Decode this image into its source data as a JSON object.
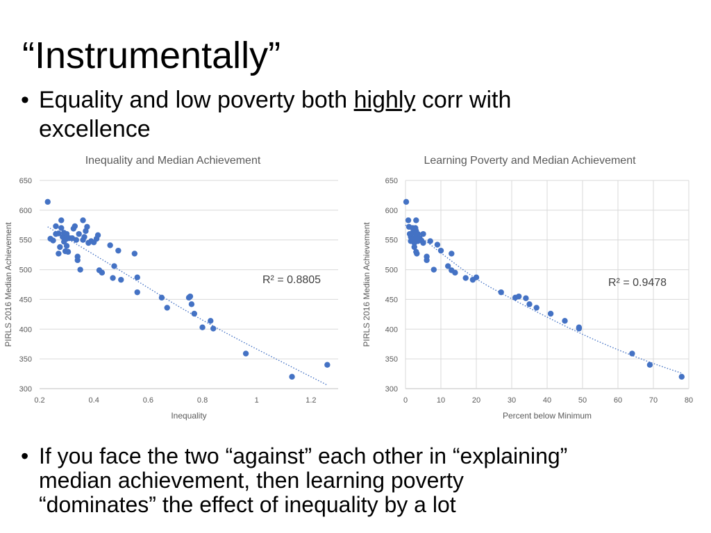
{
  "slide": {
    "title": "“Instrumentally”",
    "bullet1_dot": "•",
    "bullet1_pre": "Equality and low poverty both ",
    "bullet1_emph": "highly",
    "bullet1_post": " corr with",
    "bullet1_line2": "excellence",
    "bullet2_dot": "•",
    "bullet2_lines": [
      "If you face the two “against” each other in “explaining”",
      "median achievement, then learning poverty",
      "“dominates” the effect of inequality by a lot"
    ]
  },
  "colors": {
    "marker": "#4472c4",
    "grid": "#d9d9d9",
    "text": "#595959"
  },
  "chart_data": [
    {
      "type": "scatter",
      "title": "Inequality and Median Achievement",
      "xlabel": "Inequality",
      "ylabel": "PIRLS 2016 Median Achievement",
      "xlim": [
        0.2,
        1.3
      ],
      "ylim": [
        300,
        650
      ],
      "xticks": [
        0.2,
        0.4,
        0.6,
        0.8,
        1.0,
        1.2
      ],
      "xtick_labels": [
        "0.2",
        "0.4",
        "0.6",
        "0.8",
        "1",
        "1.2"
      ],
      "yticks": [
        300,
        350,
        400,
        450,
        500,
        550,
        600,
        650
      ],
      "ytick_labels": [
        "300",
        "350",
        "400",
        "450",
        "500",
        "550",
        "600",
        "650"
      ],
      "grid": "horizontal",
      "annotation": "R² = 0.8805",
      "trendline": {
        "type": "polynomial",
        "points": [
          [
            0.23,
            572
          ],
          [
            0.5,
            498
          ],
          [
            0.8,
            413
          ],
          [
            1.26,
            306
          ]
        ]
      },
      "points": [
        [
          0.23,
          614
        ],
        [
          0.24,
          552
        ],
        [
          0.25,
          549
        ],
        [
          0.26,
          573
        ],
        [
          0.26,
          560
        ],
        [
          0.27,
          527
        ],
        [
          0.27,
          561
        ],
        [
          0.275,
          538
        ],
        [
          0.28,
          583
        ],
        [
          0.28,
          570
        ],
        [
          0.285,
          555
        ],
        [
          0.29,
          547
        ],
        [
          0.29,
          562
        ],
        [
          0.295,
          531
        ],
        [
          0.3,
          540
        ],
        [
          0.3,
          552
        ],
        [
          0.3,
          560
        ],
        [
          0.305,
          530
        ],
        [
          0.31,
          553
        ],
        [
          0.32,
          553
        ],
        [
          0.325,
          569
        ],
        [
          0.33,
          573
        ],
        [
          0.335,
          550
        ],
        [
          0.34,
          522
        ],
        [
          0.34,
          516
        ],
        [
          0.345,
          560
        ],
        [
          0.35,
          500
        ],
        [
          0.36,
          583
        ],
        [
          0.36,
          550
        ],
        [
          0.365,
          555
        ],
        [
          0.37,
          565
        ],
        [
          0.375,
          572
        ],
        [
          0.38,
          545
        ],
        [
          0.39,
          548
        ],
        [
          0.4,
          546
        ],
        [
          0.41,
          552
        ],
        [
          0.415,
          558
        ],
        [
          0.42,
          499
        ],
        [
          0.43,
          495
        ],
        [
          0.46,
          541
        ],
        [
          0.47,
          486
        ],
        [
          0.475,
          506
        ],
        [
          0.49,
          532
        ],
        [
          0.5,
          483
        ],
        [
          0.55,
          527
        ],
        [
          0.56,
          487
        ],
        [
          0.56,
          462
        ],
        [
          0.65,
          453
        ],
        [
          0.67,
          436
        ],
        [
          0.75,
          453
        ],
        [
          0.755,
          455
        ],
        [
          0.76,
          442
        ],
        [
          0.77,
          426
        ],
        [
          0.8,
          403
        ],
        [
          0.83,
          414
        ],
        [
          0.84,
          401
        ],
        [
          0.96,
          359
        ],
        [
          1.13,
          320
        ],
        [
          1.26,
          340
        ]
      ]
    },
    {
      "type": "scatter",
      "title": "Learning Poverty and Median Achievement",
      "xlabel": "Percent below Minimum",
      "ylabel": "PIRLS 2016 Median Achievement",
      "xlim": [
        0,
        80
      ],
      "ylim": [
        300,
        650
      ],
      "xticks": [
        0,
        10,
        20,
        30,
        40,
        50,
        60,
        70,
        80
      ],
      "xtick_labels": [
        "0",
        "10",
        "20",
        "30",
        "40",
        "50",
        "60",
        "70",
        "80"
      ],
      "yticks": [
        300,
        350,
        400,
        450,
        500,
        550,
        600,
        650
      ],
      "ytick_labels": [
        "300",
        "350",
        "400",
        "450",
        "500",
        "550",
        "600",
        "650"
      ],
      "grid": "both",
      "annotation": "R² = 0.9478",
      "trendline": {
        "type": "polynomial",
        "points": [
          [
            0,
            575
          ],
          [
            10,
            528
          ],
          [
            20,
            483
          ],
          [
            30,
            451
          ],
          [
            40,
            420
          ],
          [
            50,
            391
          ],
          [
            60,
            365
          ],
          [
            70,
            342
          ],
          [
            78,
            326
          ]
        ]
      },
      "points": [
        [
          0.2,
          614
        ],
        [
          0.8,
          583
        ],
        [
          1.0,
          572
        ],
        [
          1.2,
          560
        ],
        [
          1.5,
          555
        ],
        [
          1.5,
          548
        ],
        [
          2.0,
          570
        ],
        [
          2.0,
          562
        ],
        [
          2.2,
          552
        ],
        [
          2.5,
          545
        ],
        [
          2.5,
          538
        ],
        [
          2.8,
          570
        ],
        [
          3.0,
          583
        ],
        [
          3.0,
          565
        ],
        [
          3.0,
          556
        ],
        [
          3.0,
          530
        ],
        [
          3.2,
          527
        ],
        [
          3.5,
          560
        ],
        [
          3.5,
          548
        ],
        [
          4.0,
          553
        ],
        [
          4.5,
          549
        ],
        [
          5.0,
          545
        ],
        [
          5.0,
          560
        ],
        [
          6.0,
          522
        ],
        [
          6.0,
          516
        ],
        [
          7.0,
          548
        ],
        [
          8.0,
          500
        ],
        [
          9.0,
          542
        ],
        [
          10.0,
          532
        ],
        [
          12.0,
          506
        ],
        [
          13.0,
          527
        ],
        [
          13.0,
          499
        ],
        [
          14.0,
          495
        ],
        [
          17.0,
          486
        ],
        [
          19.0,
          483
        ],
        [
          20.0,
          487
        ],
        [
          27.0,
          462
        ],
        [
          31.0,
          453
        ],
        [
          32.0,
          455
        ],
        [
          34.0,
          452
        ],
        [
          35.0,
          442
        ],
        [
          37.0,
          436
        ],
        [
          41.0,
          426
        ],
        [
          45.0,
          414
        ],
        [
          49.0,
          403
        ],
        [
          49.0,
          401
        ],
        [
          64.0,
          359
        ],
        [
          69.0,
          340
        ],
        [
          78.0,
          320
        ]
      ]
    }
  ]
}
